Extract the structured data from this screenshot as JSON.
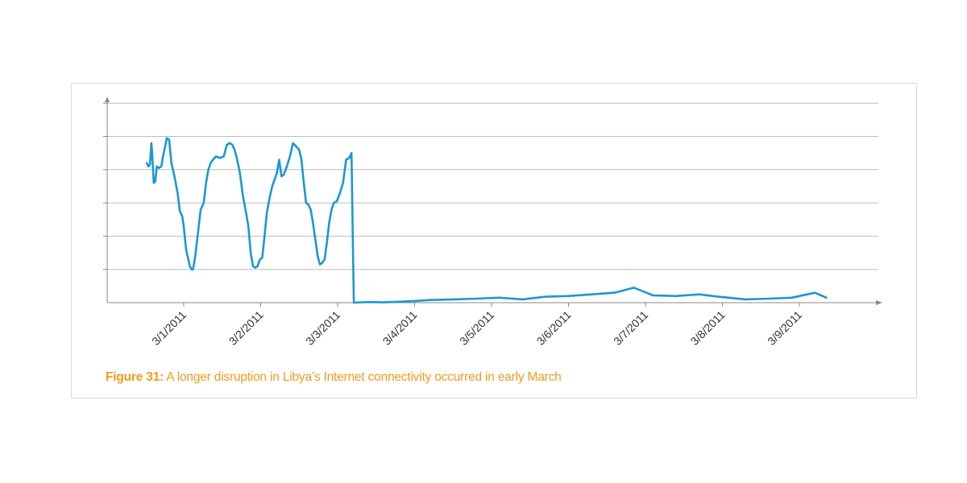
{
  "colors": {
    "line": "#1b98d1",
    "grid": "#bdbdbd",
    "axis": "#888888",
    "caption": "#f39a1e",
    "tick_text": "#333333"
  },
  "caption": {
    "label": "Figure 31:",
    "text": "A longer disruption in Libya’s Internet connectivity occurred in early March"
  },
  "chart_data": {
    "type": "line",
    "title": "",
    "xlabel": "",
    "ylabel": "",
    "x_unit": "days since 3/1/2011 (tick labels are dates)",
    "xlim": [
      -0.72,
      8.8
    ],
    "ylim": [
      0,
      5
    ],
    "grid": true,
    "categories": [
      "3/1/2011",
      "3/2/2011",
      "3/3/2011",
      "3/4/2011",
      "3/5/2011",
      "3/6/2011",
      "3/7/2011",
      "3/8/2011",
      "3/9/2011"
    ],
    "series": [
      {
        "values": [
          [
            -0.48,
            4.2
          ],
          [
            -0.46,
            4.1
          ],
          [
            -0.44,
            4.15
          ],
          [
            -0.42,
            4.8
          ],
          [
            -0.41,
            4.5
          ],
          [
            -0.39,
            3.6
          ],
          [
            -0.37,
            3.65
          ],
          [
            -0.35,
            4.1
          ],
          [
            -0.32,
            4.05
          ],
          [
            -0.29,
            4.1
          ],
          [
            -0.27,
            4.4
          ],
          [
            -0.25,
            4.6
          ],
          [
            -0.22,
            4.95
          ],
          [
            -0.19,
            4.9
          ],
          [
            -0.16,
            4.2
          ],
          [
            -0.12,
            3.8
          ],
          [
            -0.08,
            3.3
          ],
          [
            -0.05,
            2.75
          ],
          [
            -0.02,
            2.6
          ],
          [
            0.0,
            2.3
          ],
          [
            0.03,
            1.6
          ],
          [
            0.06,
            1.3
          ],
          [
            0.08,
            1.1
          ],
          [
            0.1,
            1.0
          ],
          [
            0.12,
            1.0
          ],
          [
            0.15,
            1.4
          ],
          [
            0.18,
            2.0
          ],
          [
            0.22,
            2.8
          ],
          [
            0.26,
            3.0
          ],
          [
            0.29,
            3.6
          ],
          [
            0.32,
            4.0
          ],
          [
            0.35,
            4.2
          ],
          [
            0.38,
            4.3
          ],
          [
            0.42,
            4.4
          ],
          [
            0.47,
            4.35
          ],
          [
            0.52,
            4.4
          ],
          [
            0.56,
            4.75
          ],
          [
            0.6,
            4.8
          ],
          [
            0.63,
            4.75
          ],
          [
            0.66,
            4.6
          ],
          [
            0.69,
            4.35
          ],
          [
            0.73,
            3.9
          ],
          [
            0.77,
            3.2
          ],
          [
            0.81,
            2.7
          ],
          [
            0.84,
            2.3
          ],
          [
            0.87,
            1.5
          ],
          [
            0.9,
            1.1
          ],
          [
            0.93,
            1.05
          ],
          [
            0.96,
            1.1
          ],
          [
            0.99,
            1.3
          ],
          [
            1.02,
            1.35
          ],
          [
            1.05,
            2.0
          ],
          [
            1.08,
            2.7
          ],
          [
            1.12,
            3.2
          ],
          [
            1.15,
            3.5
          ],
          [
            1.18,
            3.7
          ],
          [
            1.21,
            3.9
          ],
          [
            1.24,
            4.3
          ],
          [
            1.27,
            3.8
          ],
          [
            1.3,
            3.85
          ],
          [
            1.34,
            4.1
          ],
          [
            1.38,
            4.4
          ],
          [
            1.42,
            4.8
          ],
          [
            1.46,
            4.7
          ],
          [
            1.5,
            4.6
          ],
          [
            1.53,
            4.3
          ],
          [
            1.56,
            3.6
          ],
          [
            1.59,
            3.0
          ],
          [
            1.62,
            2.95
          ],
          [
            1.65,
            2.8
          ],
          [
            1.68,
            2.4
          ],
          [
            1.71,
            1.9
          ],
          [
            1.74,
            1.4
          ],
          [
            1.77,
            1.15
          ],
          [
            1.8,
            1.2
          ],
          [
            1.83,
            1.3
          ],
          [
            1.86,
            1.8
          ],
          [
            1.89,
            2.4
          ],
          [
            1.92,
            2.8
          ],
          [
            1.95,
            3.0
          ],
          [
            1.99,
            3.05
          ],
          [
            2.03,
            3.3
          ],
          [
            2.07,
            3.6
          ],
          [
            2.11,
            4.3
          ],
          [
            2.15,
            4.35
          ],
          [
            2.18,
            4.5
          ],
          [
            2.2,
            1.5
          ]
        ],
        "values_after_drop": [
          [
            2.21,
            0.0
          ],
          [
            2.4,
            0.02
          ],
          [
            2.6,
            0.01
          ],
          [
            2.8,
            0.03
          ],
          [
            3.0,
            0.05
          ],
          [
            3.2,
            0.08
          ],
          [
            3.5,
            0.1
          ],
          [
            3.8,
            0.12
          ],
          [
            4.1,
            0.15
          ],
          [
            4.4,
            0.1
          ],
          [
            4.7,
            0.18
          ],
          [
            5.0,
            0.2
          ],
          [
            5.3,
            0.25
          ],
          [
            5.6,
            0.3
          ],
          [
            5.85,
            0.45
          ],
          [
            6.1,
            0.22
          ],
          [
            6.4,
            0.2
          ],
          [
            6.7,
            0.25
          ],
          [
            6.95,
            0.18
          ],
          [
            7.3,
            0.1
          ],
          [
            7.6,
            0.12
          ],
          [
            7.9,
            0.15
          ],
          [
            8.1,
            0.25
          ],
          [
            8.2,
            0.3
          ],
          [
            8.3,
            0.2
          ],
          [
            8.35,
            0.15
          ]
        ]
      }
    ]
  }
}
